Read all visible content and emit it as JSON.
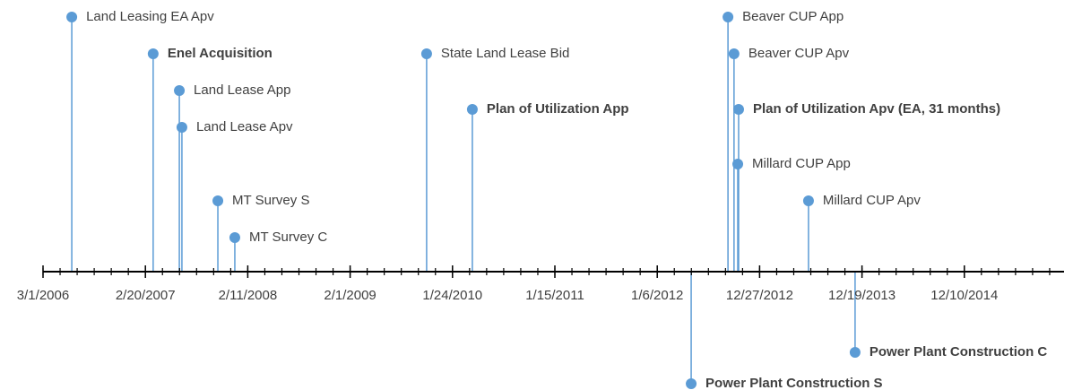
{
  "chart_data": {
    "type": "timeline",
    "color": "#5b9bd5",
    "xlim": [
      38777,
      42337
    ],
    "xticks": [
      {
        "value": 38777,
        "label": "3/1/2006"
      },
      {
        "value": 39133,
        "label": "2/20/2007"
      },
      {
        "value": 39489,
        "label": "2/11/2008"
      },
      {
        "value": 39845,
        "label": "2/1/2009"
      },
      {
        "value": 40201,
        "label": "1/24/2010"
      },
      {
        "value": 40557,
        "label": "1/15/2011"
      },
      {
        "value": 40913,
        "label": "1/6/2012"
      },
      {
        "value": 41269,
        "label": "12/27/2012"
      },
      {
        "value": 41625,
        "label": "12/19/2013"
      },
      {
        "value": 41981,
        "label": "12/10/2014"
      }
    ],
    "minor_divisions": 6,
    "ylim": [
      -132,
      303
    ],
    "events": [
      {
        "label": "Land Leasing EA Apv",
        "x": 38877,
        "y": 284,
        "bold": false
      },
      {
        "label": "Enel Acquisition",
        "x": 39160,
        "y": 243,
        "bold": true
      },
      {
        "label": "Land Lease App",
        "x": 39251,
        "y": 202,
        "bold": false
      },
      {
        "label": "Land Lease Apv",
        "x": 39260,
        "y": 161,
        "bold": false
      },
      {
        "label": "MT Survey S",
        "x": 39385,
        "y": 79,
        "bold": false
      },
      {
        "label": "MT Survey C",
        "x": 39444,
        "y": 38,
        "bold": false
      },
      {
        "label": "State Land Lease Bid",
        "x": 40111,
        "y": 243,
        "bold": false
      },
      {
        "label": "Plan of Utilization App",
        "x": 40270,
        "y": 181,
        "bold": true
      },
      {
        "label": "Power Plant Construction S",
        "x": 41031,
        "y": -125,
        "bold": true
      },
      {
        "label": "Beaver CUP App",
        "x": 41159,
        "y": 284,
        "bold": false
      },
      {
        "label": "Beaver CUP Apv",
        "x": 41180,
        "y": 243,
        "bold": false
      },
      {
        "label": "Plan of Utilization Apv (EA, 31 months)",
        "x": 41196,
        "y": 181,
        "bold": true
      },
      {
        "label": "Millard CUP App",
        "x": 41193,
        "y": 120,
        "bold": false
      },
      {
        "label": "Millard CUP Apv",
        "x": 41439,
        "y": 79,
        "bold": false
      },
      {
        "label": "Power Plant Construction C",
        "x": 41601,
        "y": -90,
        "bold": true
      }
    ]
  }
}
